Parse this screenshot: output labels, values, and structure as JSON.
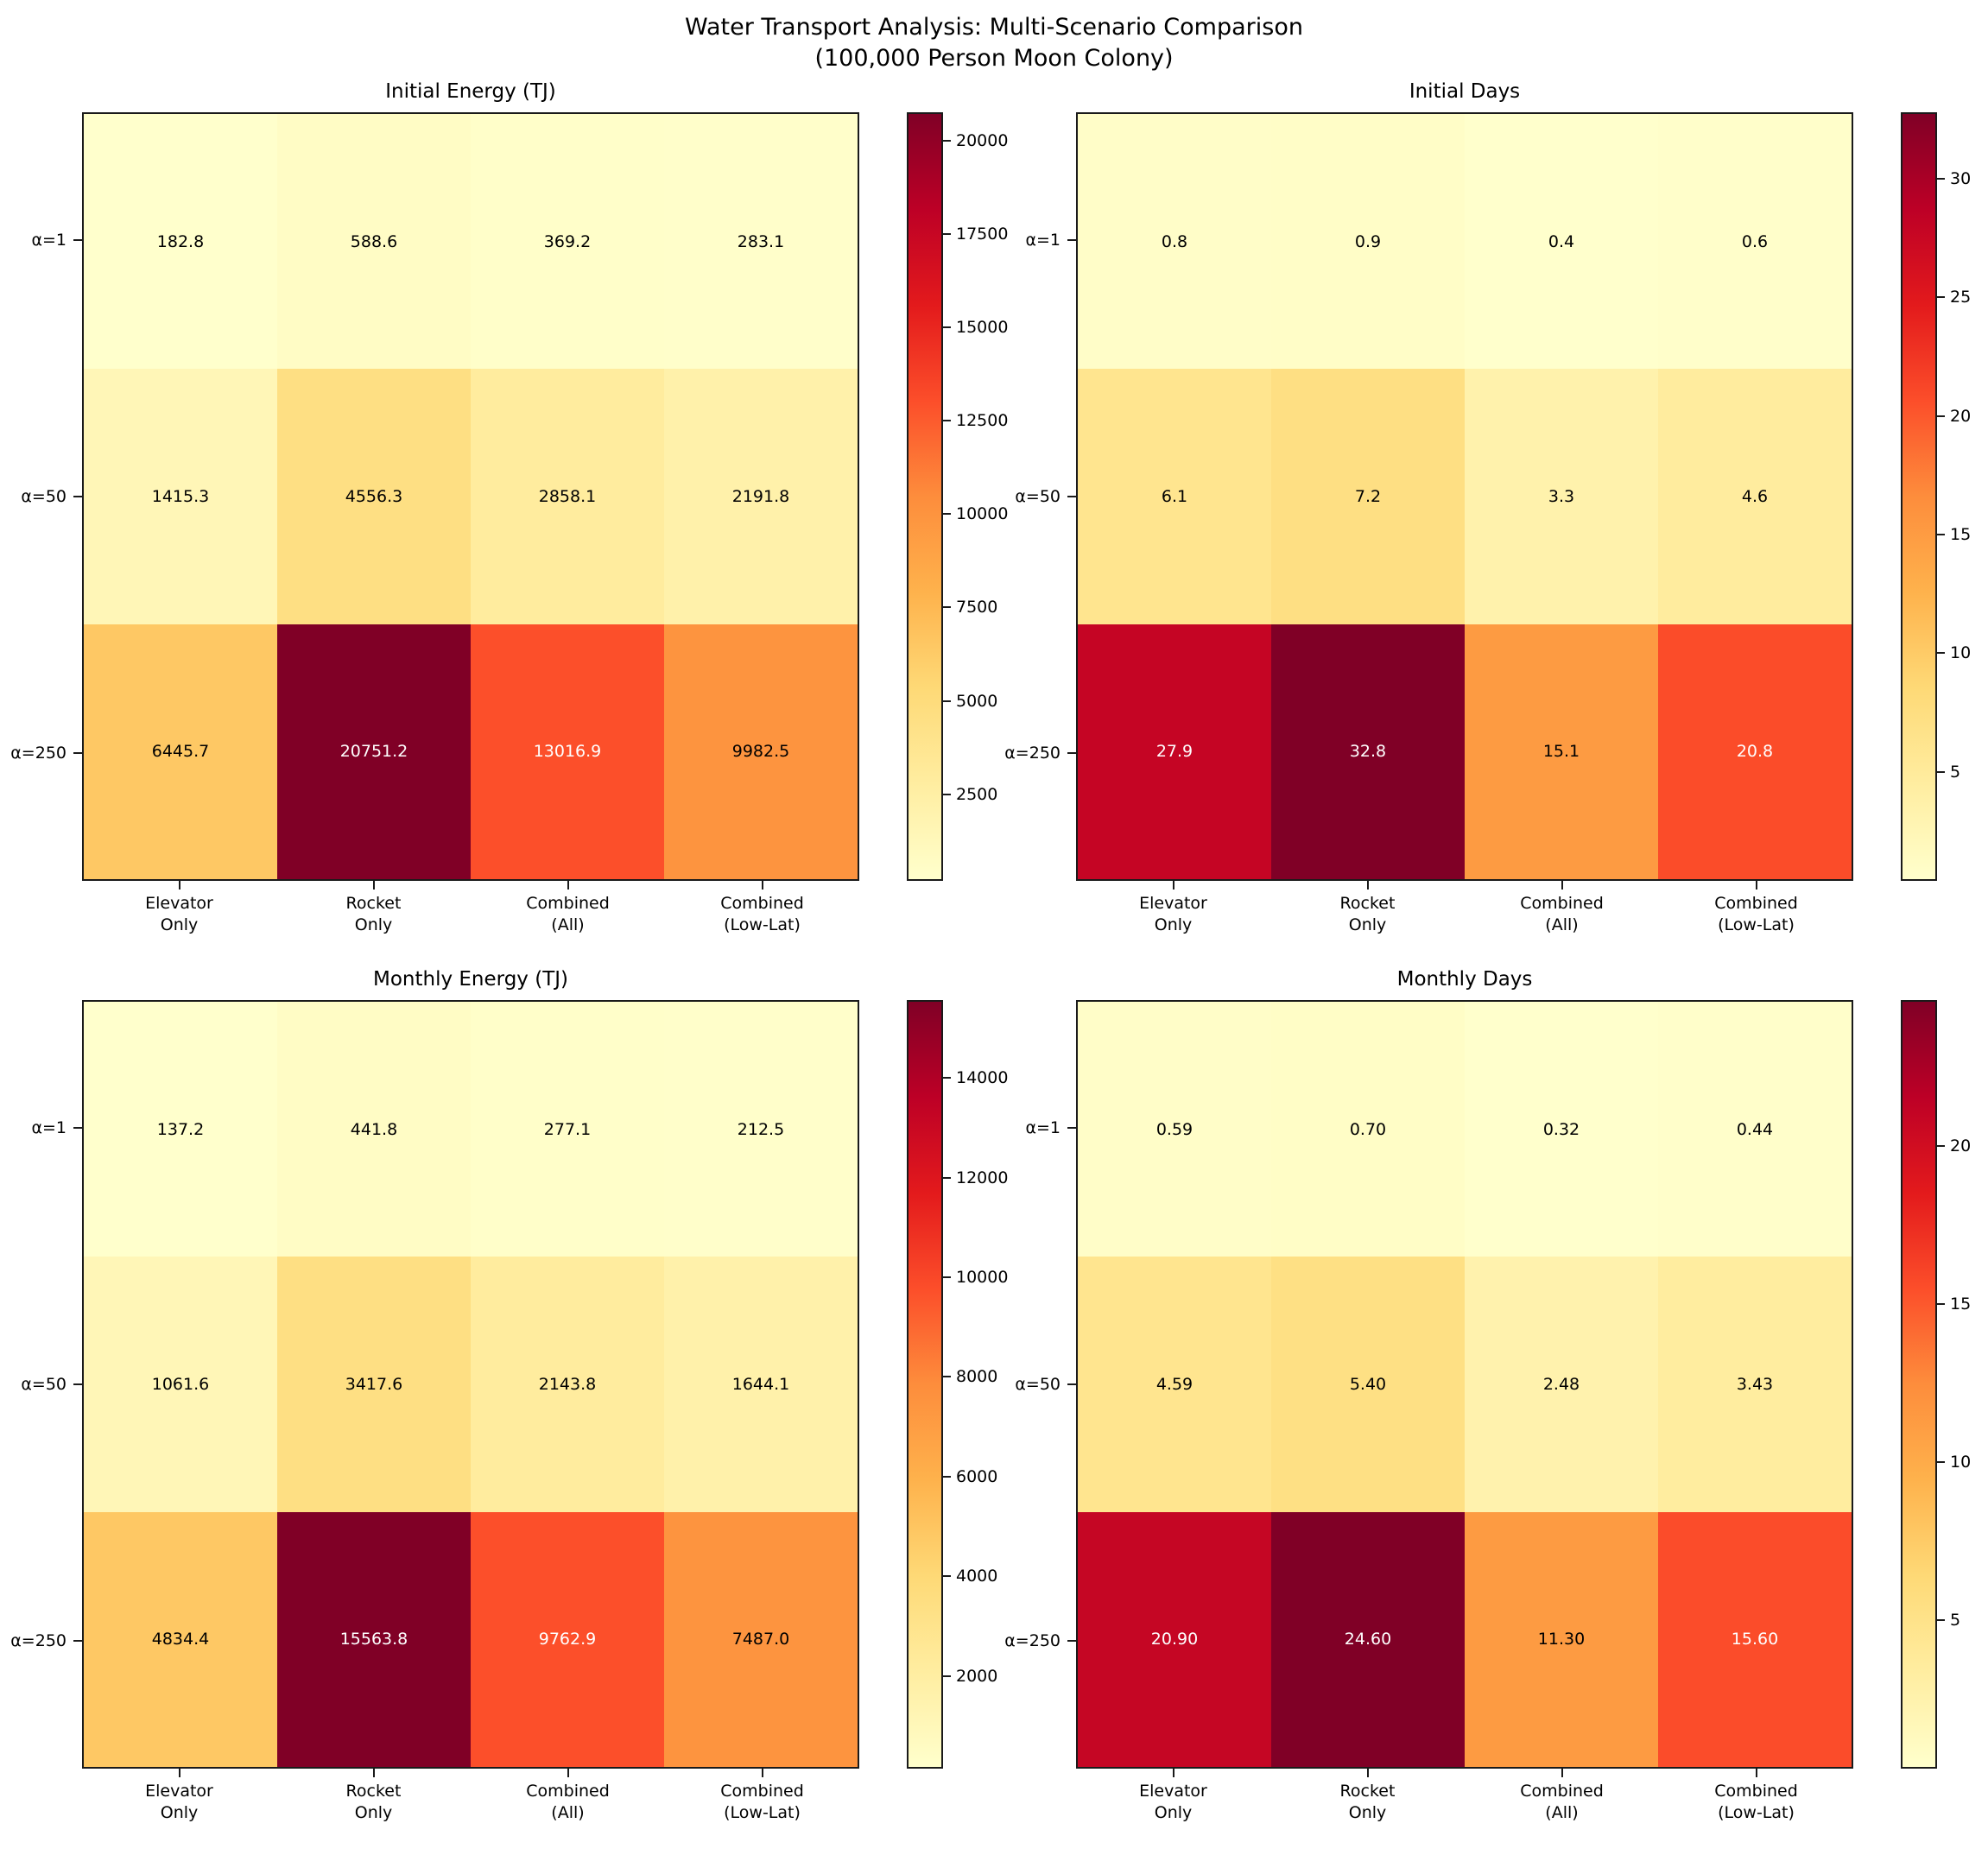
{
  "suptitle": {
    "line1": "Water Transport Analysis: Multi-Scenario Comparison",
    "line2": "(100,000 Person Moon Colony)"
  },
  "colormap": {
    "name": "YlOrRd",
    "anchors": [
      "#ffffcc",
      "#ffeda0",
      "#fed976",
      "#feb24c",
      "#fd8d3c",
      "#fc4e2a",
      "#e31a1c",
      "#bd0026",
      "#800026"
    ]
  },
  "annotation_text_colors": {
    "light_cell": "#000000",
    "dark_cell": "#ffffff"
  },
  "chart_data": [
    {
      "type": "heatmap",
      "title": "Initial Energy (TJ)",
      "rows": [
        "α=1",
        "α=50",
        "α=250"
      ],
      "columns": [
        "Elevator\nOnly",
        "Rocket\nOnly",
        "Combined\n(All)",
        "Combined\n(Low-Lat)"
      ],
      "values": [
        [
          182.8,
          588.6,
          369.2,
          283.1
        ],
        [
          1415.3,
          4556.3,
          2858.1,
          2191.8
        ],
        [
          6445.7,
          20751.2,
          13016.9,
          9982.5
        ]
      ],
      "labels": [
        [
          "182.8",
          "588.6",
          "369.2",
          "283.1"
        ],
        [
          "1415.3",
          "4556.3",
          "2858.1",
          "2191.8"
        ],
        [
          "6445.7",
          "20751.2",
          "13016.9",
          "9982.5"
        ]
      ],
      "vmin": 182.8,
      "vmax": 20751.2,
      "colorbar_ticks": [
        2500,
        5000,
        7500,
        10000,
        12500,
        15000,
        17500,
        20000
      ],
      "legend_position": "right",
      "grid": false
    },
    {
      "type": "heatmap",
      "title": "Initial Days",
      "rows": [
        "α=1",
        "α=50",
        "α=250"
      ],
      "columns": [
        "Elevator\nOnly",
        "Rocket\nOnly",
        "Combined\n(All)",
        "Combined\n(Low-Lat)"
      ],
      "values": [
        [
          0.8,
          0.9,
          0.4,
          0.6
        ],
        [
          6.1,
          7.2,
          3.3,
          4.6
        ],
        [
          27.9,
          32.8,
          15.1,
          20.8
        ]
      ],
      "labels": [
        [
          "0.8",
          "0.9",
          "0.4",
          "0.6"
        ],
        [
          "6.1",
          "7.2",
          "3.3",
          "4.6"
        ],
        [
          "27.9",
          "32.8",
          "15.1",
          "20.8"
        ]
      ],
      "vmin": 0.4,
      "vmax": 32.8,
      "colorbar_ticks": [
        5,
        10,
        15,
        20,
        25,
        30
      ],
      "legend_position": "right",
      "grid": false
    },
    {
      "type": "heatmap",
      "title": "Monthly Energy (TJ)",
      "rows": [
        "α=1",
        "α=50",
        "α=250"
      ],
      "columns": [
        "Elevator\nOnly",
        "Rocket\nOnly",
        "Combined\n(All)",
        "Combined\n(Low-Lat)"
      ],
      "values": [
        [
          137.2,
          441.8,
          277.1,
          212.5
        ],
        [
          1061.6,
          3417.6,
          2143.8,
          1644.1
        ],
        [
          4834.4,
          15563.8,
          9762.9,
          7487.0
        ]
      ],
      "labels": [
        [
          "137.2",
          "441.8",
          "277.1",
          "212.5"
        ],
        [
          "1061.6",
          "3417.6",
          "2143.8",
          "1644.1"
        ],
        [
          "4834.4",
          "15563.8",
          "9762.9",
          "7487.0"
        ]
      ],
      "vmin": 137.2,
      "vmax": 15563.8,
      "colorbar_ticks": [
        2000,
        4000,
        6000,
        8000,
        10000,
        12000,
        14000
      ],
      "legend_position": "right",
      "grid": false
    },
    {
      "type": "heatmap",
      "title": "Monthly Days",
      "rows": [
        "α=1",
        "α=50",
        "α=250"
      ],
      "columns": [
        "Elevator\nOnly",
        "Rocket\nOnly",
        "Combined\n(All)",
        "Combined\n(Low-Lat)"
      ],
      "values": [
        [
          0.59,
          0.7,
          0.32,
          0.44
        ],
        [
          4.59,
          5.4,
          2.48,
          3.43
        ],
        [
          20.9,
          24.6,
          11.3,
          15.6
        ]
      ],
      "labels": [
        [
          "0.59",
          "0.70",
          "0.32",
          "0.44"
        ],
        [
          "4.59",
          "5.40",
          "2.48",
          "3.43"
        ],
        [
          "20.90",
          "24.60",
          "11.30",
          "15.60"
        ]
      ],
      "vmin": 0.32,
      "vmax": 24.6,
      "colorbar_ticks": [
        5,
        10,
        15,
        20
      ],
      "legend_position": "right",
      "grid": false
    }
  ]
}
